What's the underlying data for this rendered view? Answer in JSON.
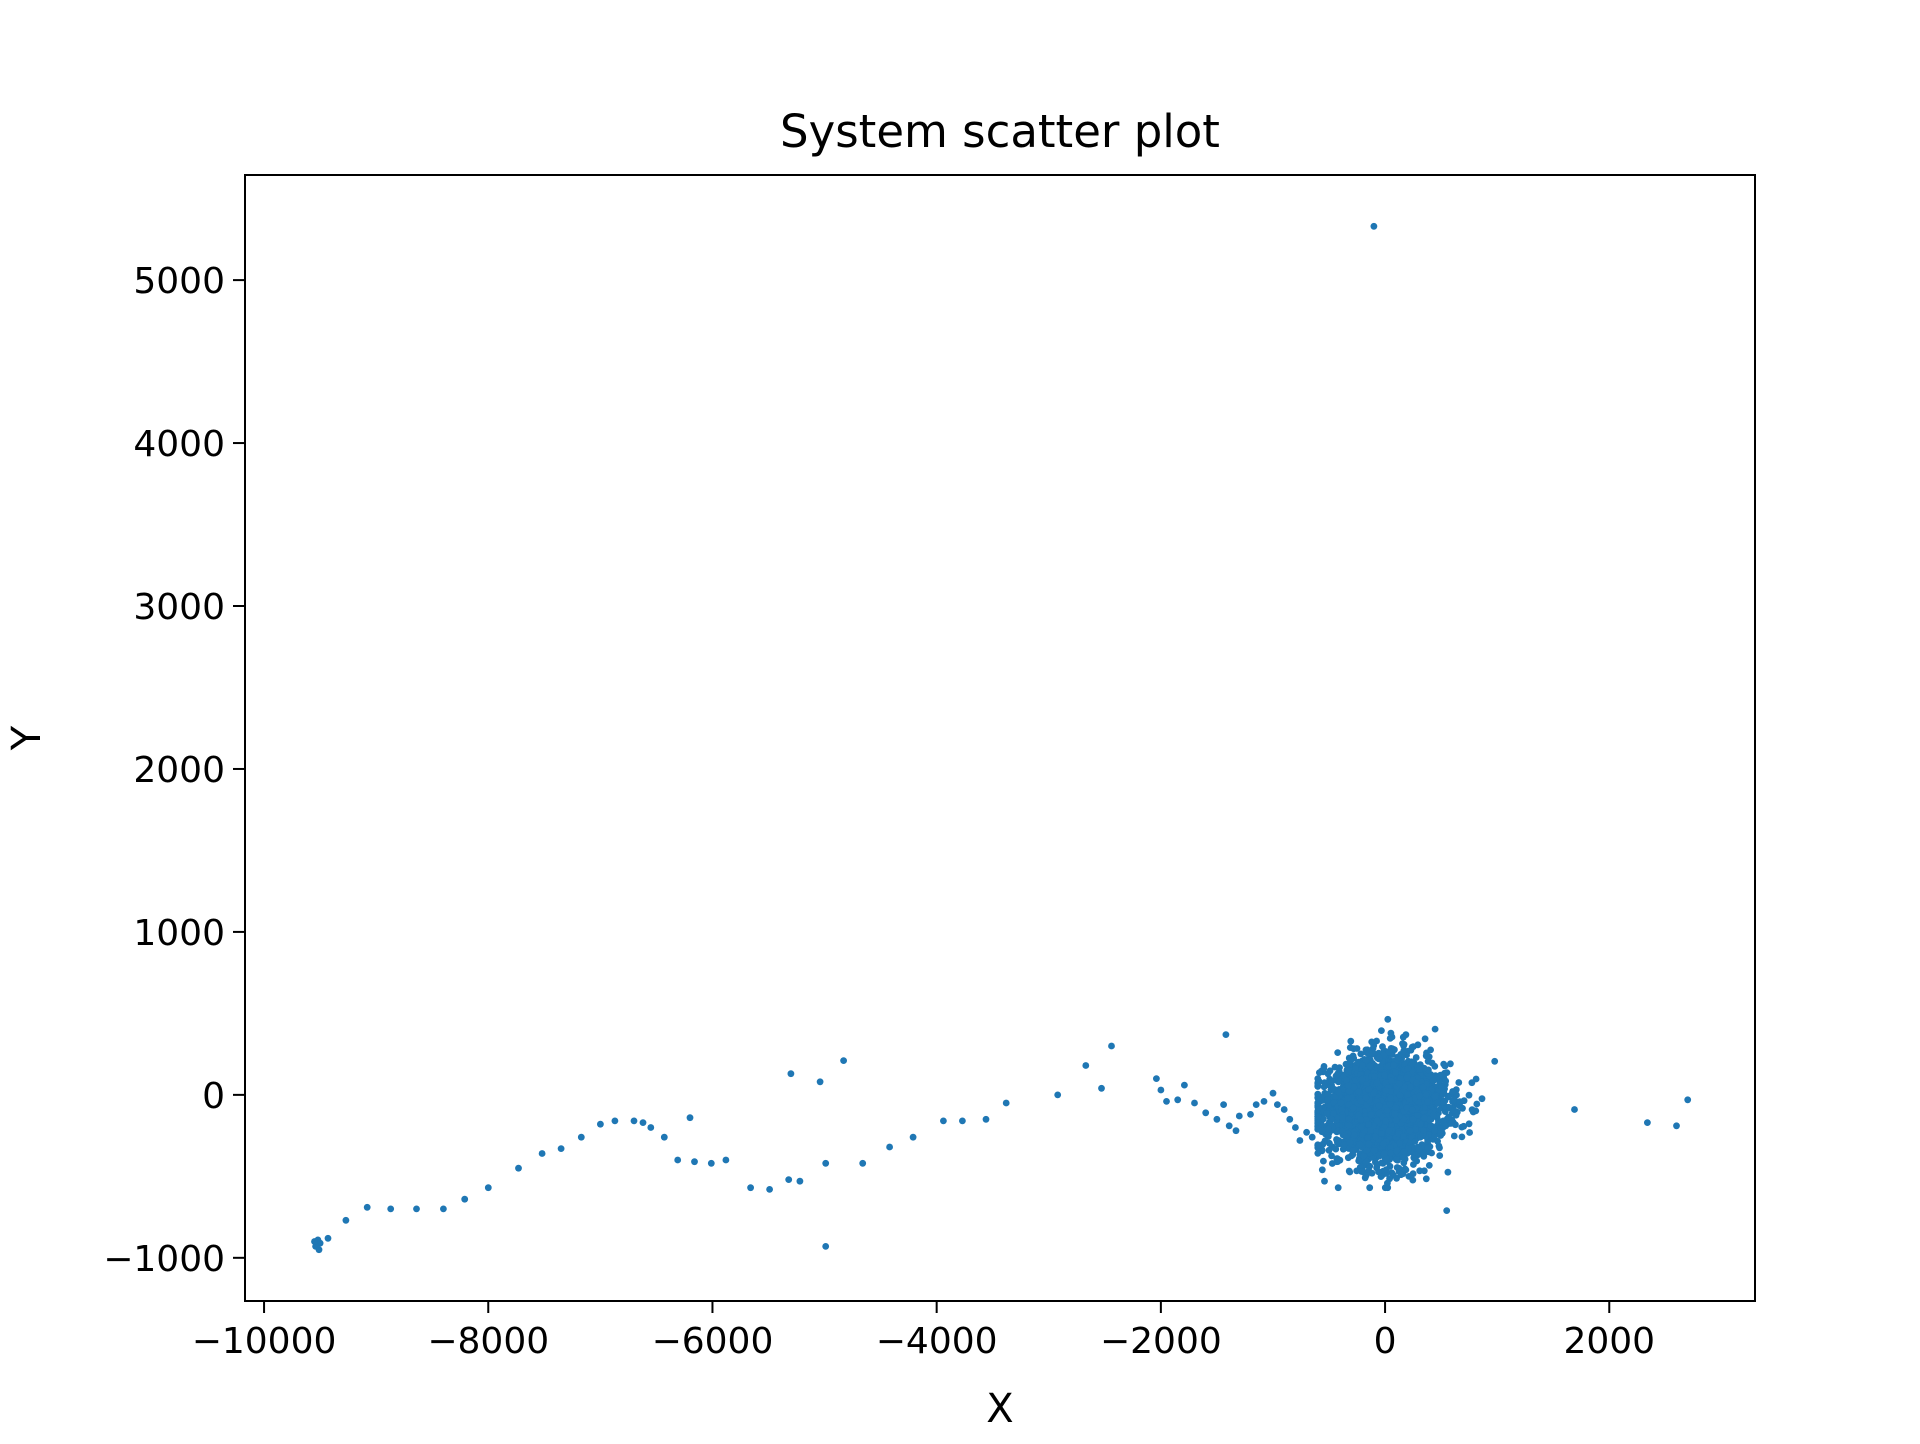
{
  "chart_data": {
    "type": "scatter",
    "title": "System scatter plot",
    "xlabel": "X",
    "ylabel": "Y",
    "xlim": [
      -10170,
      3300
    ],
    "ylim": [
      -1265,
      5645
    ],
    "xticks": [
      -10000,
      -8000,
      -6000,
      -4000,
      -2000,
      0,
      2000
    ],
    "xtick_labels": [
      "−10000",
      "−8000",
      "−6000",
      "−4000",
      "−2000",
      "0",
      "2000"
    ],
    "yticks": [
      -1000,
      0,
      1000,
      2000,
      3000,
      4000,
      5000
    ],
    "ytick_labels": [
      "−1000",
      "0",
      "1000",
      "2000",
      "3000",
      "4000",
      "5000"
    ],
    "grid": false,
    "marker_color": "#1f77b4",
    "points": [
      [
        -100,
        5330
      ],
      [
        -1420,
        370
      ],
      [
        -2440,
        300
      ],
      [
        -2670,
        180
      ],
      [
        -2530,
        40
      ],
      [
        -2920,
        0
      ],
      [
        -3380,
        -50
      ],
      [
        -3560,
        -150
      ],
      [
        -3770,
        -160
      ],
      [
        -3940,
        -160
      ],
      [
        -4210,
        -260
      ],
      [
        -4420,
        -320
      ],
      [
        -4660,
        -420
      ],
      [
        -4990,
        -420
      ],
      [
        -4990,
        -930
      ],
      [
        -4830,
        210
      ],
      [
        -5040,
        80
      ],
      [
        -5300,
        130
      ],
      [
        -5220,
        -530
      ],
      [
        -5320,
        -520
      ],
      [
        -5490,
        -580
      ],
      [
        -5660,
        -570
      ],
      [
        -5880,
        -400
      ],
      [
        -6010,
        -420
      ],
      [
        -6160,
        -410
      ],
      [
        -6310,
        -400
      ],
      [
        -6200,
        -140
      ],
      [
        -6430,
        -260
      ],
      [
        -6550,
        -200
      ],
      [
        -6620,
        -170
      ],
      [
        -6700,
        -160
      ],
      [
        -6870,
        -160
      ],
      [
        -7000,
        -180
      ],
      [
        -7170,
        -260
      ],
      [
        -7350,
        -330
      ],
      [
        -7520,
        -360
      ],
      [
        -7730,
        -450
      ],
      [
        -8000,
        -570
      ],
      [
        -8210,
        -640
      ],
      [
        -8400,
        -700
      ],
      [
        -8640,
        -700
      ],
      [
        -8870,
        -700
      ],
      [
        -9080,
        -690
      ],
      [
        -9270,
        -770
      ],
      [
        -9430,
        -880
      ],
      [
        -9500,
        -910
      ],
      [
        -9520,
        -890
      ],
      [
        -9540,
        -930
      ],
      [
        -9510,
        -950
      ],
      [
        -9550,
        -900
      ],
      [
        2700,
        -30
      ],
      [
        2600,
        -190
      ],
      [
        2340,
        -170
      ],
      [
        1690,
        -90
      ],
      [
        550,
        -710
      ],
      [
        -2040,
        100
      ],
      [
        -2000,
        30
      ],
      [
        -1950,
        -40
      ],
      [
        -1850,
        -30
      ],
      [
        -1790,
        60
      ],
      [
        -1700,
        -50
      ],
      [
        -1600,
        -110
      ],
      [
        -1500,
        -150
      ],
      [
        -1440,
        -60
      ],
      [
        -1390,
        -190
      ],
      [
        -1330,
        -220
      ],
      [
        -1300,
        -130
      ],
      [
        -1200,
        -120
      ],
      [
        -1150,
        -60
      ],
      [
        -1080,
        -40
      ],
      [
        -1000,
        10
      ],
      [
        -960,
        -60
      ],
      [
        -900,
        -90
      ],
      [
        -850,
        -150
      ],
      [
        -800,
        -200
      ],
      [
        -760,
        -280
      ],
      [
        -700,
        -230
      ],
      [
        -650,
        -260
      ],
      [
        -600,
        -310
      ],
      [
        -560,
        -460
      ],
      [
        -540,
        -530
      ],
      [
        -500,
        -340
      ],
      [
        -430,
        -410
      ],
      [
        -360,
        -250
      ]
    ],
    "cluster": {
      "center": [
        0,
        -80
      ],
      "sigma": [
        270,
        130
      ],
      "count": 2600,
      "x_range": [
        -600,
        1390
      ],
      "y_range": [
        -570,
        490
      ]
    }
  }
}
